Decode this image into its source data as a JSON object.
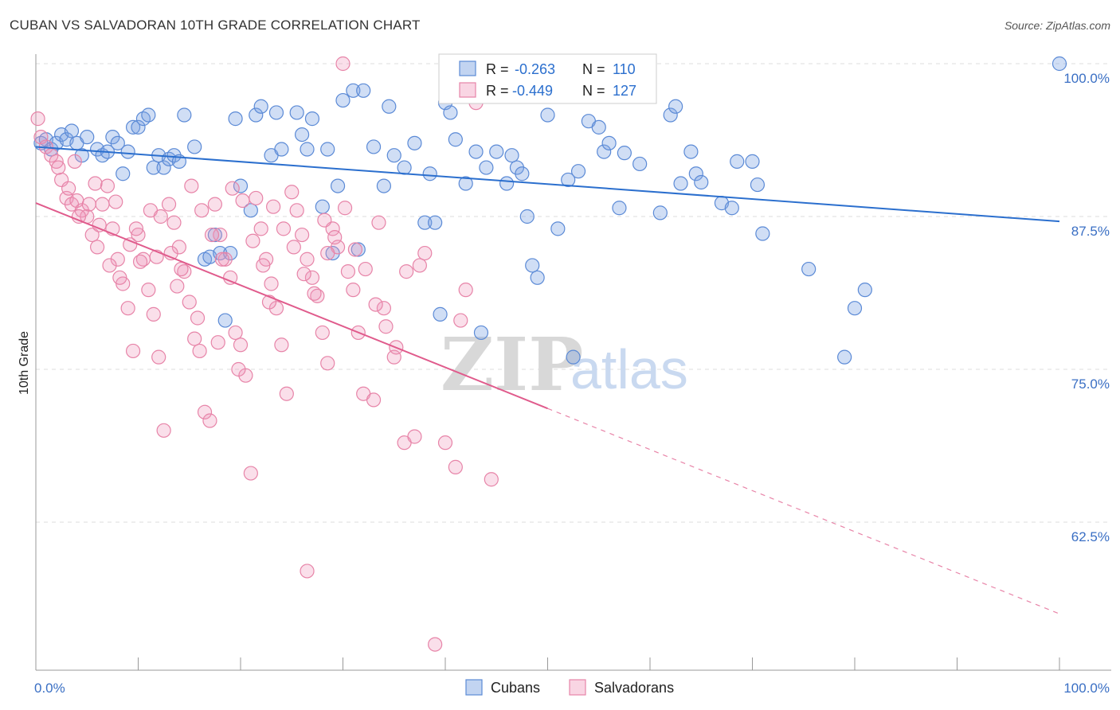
{
  "title": "CUBAN VS SALVADORAN 10TH GRADE CORRELATION CHART",
  "source": "Source: ZipAtlas.com",
  "watermark": {
    "part1": "ZIP",
    "part2": "atlas"
  },
  "chart_data": {
    "type": "scatter",
    "ylabel": "10th Grade",
    "xlim": [
      0,
      100
    ],
    "ylim": [
      50,
      100
    ],
    "x_tick_labels": [
      "0.0%",
      "100.0%"
    ],
    "y_ticks": [
      {
        "value": 100,
        "label": "100.0%"
      },
      {
        "value": 87.5,
        "label": "87.5%"
      },
      {
        "value": 75,
        "label": "75.0%"
      },
      {
        "value": 62.5,
        "label": "62.5%"
      }
    ],
    "grid": true,
    "legend": [
      {
        "series": "Cubans",
        "r_label": "R =",
        "r_value": "-0.263",
        "n_label": "N =",
        "n_value": "110",
        "color": "#5b8ad6"
      },
      {
        "series": "Salvadorans",
        "r_label": "R =",
        "r_value": "-0.449",
        "n_label": "N =",
        "n_value": "127",
        "color": "#e784a8"
      }
    ],
    "series": [
      {
        "name": "Cubans",
        "color": "#5b8ad6",
        "trend": {
          "x0": 0,
          "y0": 93.2,
          "x1": 100,
          "y1": 87.1
        },
        "points": [
          [
            0.5,
            93.5
          ],
          [
            1,
            93.8
          ],
          [
            1.5,
            93
          ],
          [
            2,
            93.5
          ],
          [
            2.5,
            94.2
          ],
          [
            3,
            93.8
          ],
          [
            3.5,
            94.5
          ],
          [
            4,
            93.5
          ],
          [
            5,
            94
          ],
          [
            4.5,
            92.5
          ],
          [
            6,
            93
          ],
          [
            6.5,
            92.5
          ],
          [
            7,
            92.8
          ],
          [
            7.5,
            94
          ],
          [
            8,
            93.5
          ],
          [
            8.5,
            91
          ],
          [
            9,
            92.8
          ],
          [
            9.5,
            94.8
          ],
          [
            10,
            94.8
          ],
          [
            10.5,
            95.5
          ],
          [
            11,
            95.8
          ],
          [
            11.5,
            91.5
          ],
          [
            12,
            92.5
          ],
          [
            12.5,
            91.5
          ],
          [
            13,
            92.2
          ],
          [
            13.5,
            92.5
          ],
          [
            14,
            92
          ],
          [
            14.5,
            95.8
          ],
          [
            15.5,
            93.2
          ],
          [
            16.5,
            84
          ],
          [
            17,
            84.2
          ],
          [
            17.5,
            86
          ],
          [
            18,
            84.5
          ],
          [
            18.5,
            79
          ],
          [
            19,
            84.5
          ],
          [
            19.5,
            95.5
          ],
          [
            20,
            90
          ],
          [
            21,
            88
          ],
          [
            21.5,
            95.8
          ],
          [
            22,
            96.5
          ],
          [
            23,
            92.5
          ],
          [
            23.5,
            96
          ],
          [
            24,
            93
          ],
          [
            25.5,
            96
          ],
          [
            26,
            94.2
          ],
          [
            26.5,
            93
          ],
          [
            27,
            95.5
          ],
          [
            28,
            88.3
          ],
          [
            28.5,
            93
          ],
          [
            29,
            84.5
          ],
          [
            29.5,
            90
          ],
          [
            30,
            97
          ],
          [
            31,
            97.8
          ],
          [
            31.5,
            84.8
          ],
          [
            32,
            97.8
          ],
          [
            33,
            93.2
          ],
          [
            34,
            90
          ],
          [
            34.5,
            96.5
          ],
          [
            35,
            92.5
          ],
          [
            36,
            91.5
          ],
          [
            37,
            93.5
          ],
          [
            38,
            87
          ],
          [
            38.5,
            91
          ],
          [
            39,
            87
          ],
          [
            39.5,
            79.5
          ],
          [
            40,
            96.8
          ],
          [
            40.5,
            96
          ],
          [
            41,
            93.8
          ],
          [
            42,
            90.2
          ],
          [
            43,
            92.8
          ],
          [
            43.5,
            78
          ],
          [
            44,
            91.5
          ],
          [
            45,
            92.8
          ],
          [
            46,
            90.2
          ],
          [
            46.5,
            92.5
          ],
          [
            47,
            91.5
          ],
          [
            47.5,
            91
          ],
          [
            48,
            87.5
          ],
          [
            48.5,
            83.5
          ],
          [
            49,
            82.5
          ],
          [
            50,
            95.8
          ],
          [
            51,
            86.5
          ],
          [
            52,
            90.5
          ],
          [
            52.5,
            76
          ],
          [
            53,
            91.2
          ],
          [
            54,
            95.3
          ],
          [
            55,
            94.8
          ],
          [
            55.5,
            92.8
          ],
          [
            56,
            93.5
          ],
          [
            57,
            88.2
          ],
          [
            57.5,
            92.7
          ],
          [
            59,
            91.8
          ],
          [
            61,
            87.8
          ],
          [
            62,
            95.8
          ],
          [
            62.5,
            96.5
          ],
          [
            63,
            90.2
          ],
          [
            64,
            92.8
          ],
          [
            64.5,
            91
          ],
          [
            65,
            90.3
          ],
          [
            67,
            88.6
          ],
          [
            68,
            88.2
          ],
          [
            68.5,
            92
          ],
          [
            70,
            92
          ],
          [
            70.5,
            90.1
          ],
          [
            71,
            86.1
          ],
          [
            75.5,
            83.2
          ],
          [
            80,
            80
          ],
          [
            81,
            81.5
          ],
          [
            79,
            76
          ],
          [
            100,
            100
          ]
        ]
      },
      {
        "name": "Salvadorans",
        "color": "#e784a8",
        "trend": {
          "x0": 0,
          "y0": 88.6,
          "x1": 50,
          "y1": 71.8
        },
        "trend_extension": {
          "x0": 50,
          "y0": 71.8,
          "x1": 100,
          "y1": 55
        },
        "points": [
          [
            0.2,
            95.5
          ],
          [
            0.5,
            94
          ],
          [
            1,
            93.2
          ],
          [
            1.5,
            92.5
          ],
          [
            2,
            92
          ],
          [
            2.5,
            90.5
          ],
          [
            3,
            89
          ],
          [
            3.5,
            88.5
          ],
          [
            4,
            88.8
          ],
          [
            4.5,
            88
          ],
          [
            5,
            87.5
          ],
          [
            5.5,
            86
          ],
          [
            6,
            85
          ],
          [
            6.5,
            88.5
          ],
          [
            7,
            90
          ],
          [
            7.5,
            86.5
          ],
          [
            8,
            84
          ],
          [
            8.5,
            82
          ],
          [
            9,
            80
          ],
          [
            9.5,
            76.5
          ],
          [
            10,
            86
          ],
          [
            10.5,
            84
          ],
          [
            11,
            81.5
          ],
          [
            11.5,
            79.5
          ],
          [
            12,
            76
          ],
          [
            12.5,
            70
          ],
          [
            13,
            88.5
          ],
          [
            13.5,
            87
          ],
          [
            14,
            85
          ],
          [
            14.5,
            83
          ],
          [
            15,
            80.5
          ],
          [
            15.5,
            77.5
          ],
          [
            16,
            76.5
          ],
          [
            16.5,
            71.5
          ],
          [
            17,
            70.8
          ],
          [
            17.5,
            88.5
          ],
          [
            18,
            86
          ],
          [
            18.5,
            84
          ],
          [
            19,
            82.5
          ],
          [
            19.5,
            78
          ],
          [
            20,
            77
          ],
          [
            20.5,
            74.5
          ],
          [
            21,
            66.5
          ],
          [
            21.5,
            89
          ],
          [
            22,
            86.5
          ],
          [
            22.5,
            84
          ],
          [
            23,
            82
          ],
          [
            23.5,
            80
          ],
          [
            24,
            77
          ],
          [
            24.5,
            73
          ],
          [
            25,
            89.5
          ],
          [
            25.5,
            88
          ],
          [
            26,
            86
          ],
          [
            26.5,
            84
          ],
          [
            27,
            82.5
          ],
          [
            27.5,
            81
          ],
          [
            28,
            78
          ],
          [
            28.5,
            75.5
          ],
          [
            29,
            86.5
          ],
          [
            29.5,
            85
          ],
          [
            30,
            100
          ],
          [
            30.5,
            83
          ],
          [
            31,
            81.5
          ],
          [
            31.5,
            78
          ],
          [
            32,
            73
          ],
          [
            33,
            72.5
          ],
          [
            33.5,
            87
          ],
          [
            34,
            80
          ],
          [
            35,
            76
          ],
          [
            36,
            69
          ],
          [
            37,
            69.5
          ],
          [
            37.5,
            83.5
          ],
          [
            38,
            84.5
          ],
          [
            39,
            52.5
          ],
          [
            40,
            69
          ],
          [
            41,
            67
          ],
          [
            41.5,
            79
          ],
          [
            42,
            81.5
          ],
          [
            43,
            96.8
          ],
          [
            44.5,
            66
          ],
          [
            2.2,
            91.5
          ],
          [
            3.2,
            89.8
          ],
          [
            4.2,
            87.5
          ],
          [
            5.2,
            88.5
          ],
          [
            6.2,
            86.8
          ],
          [
            7.2,
            83.5
          ],
          [
            8.2,
            82.5
          ],
          [
            9.2,
            85.2
          ],
          [
            10.2,
            83.8
          ],
          [
            11.2,
            88
          ],
          [
            12.2,
            87.5
          ],
          [
            13.2,
            84.5
          ],
          [
            14.2,
            83.2
          ],
          [
            15.2,
            90
          ],
          [
            16.2,
            88
          ],
          [
            17.2,
            86
          ],
          [
            18.2,
            84
          ],
          [
            19.2,
            89.8
          ],
          [
            20.2,
            88.8
          ],
          [
            21.2,
            85.5
          ],
          [
            22.2,
            83.5
          ],
          [
            23.2,
            88.3
          ],
          [
            24.2,
            86.5
          ],
          [
            25.2,
            85
          ],
          [
            26.2,
            82.8
          ],
          [
            27.2,
            81.2
          ],
          [
            28.2,
            87.2
          ],
          [
            29.2,
            85.8
          ],
          [
            30.2,
            88.2
          ],
          [
            31.2,
            84.8
          ],
          [
            32.2,
            83.2
          ],
          [
            33.2,
            80.3
          ],
          [
            34.2,
            78.5
          ],
          [
            35.2,
            76.8
          ],
          [
            36.2,
            83
          ],
          [
            3.8,
            92
          ],
          [
            5.8,
            90.2
          ],
          [
            7.8,
            88.7
          ],
          [
            9.8,
            86.5
          ],
          [
            11.8,
            84.2
          ],
          [
            13.8,
            81.8
          ],
          [
            15.8,
            79.2
          ],
          [
            17.8,
            77.2
          ],
          [
            19.8,
            75
          ],
          [
            26.5,
            58.5
          ],
          [
            28.5,
            84.5
          ],
          [
            22.8,
            80.5
          ]
        ]
      }
    ]
  }
}
